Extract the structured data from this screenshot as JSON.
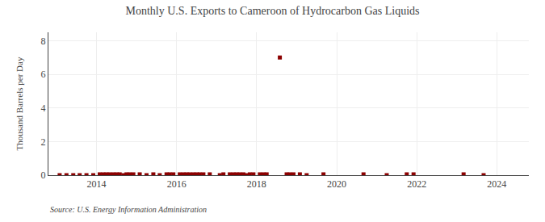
{
  "chart_data": {
    "type": "scatter",
    "title": "Monthly U.S. Exports to Cameroon of Hydrocarbon Gas Liquids",
    "y_label": "Thousand Barrels per Day",
    "annotations": [
      "Source: U.S. Energy Information Administration"
    ],
    "color": "#8b0000",
    "marker": "square",
    "grid": true,
    "xlim": [
      2012.8,
      2024.8
    ],
    "xticks": [
      2014,
      2016,
      2018,
      2020,
      2022,
      2024
    ],
    "ylim": [
      0,
      8.5
    ],
    "yticks": [
      0,
      2,
      4,
      6,
      8
    ],
    "x": [
      2013.08,
      2013.25,
      2013.42,
      2013.58,
      2013.75,
      2013.92,
      2014.08,
      2014.17,
      2014.25,
      2014.33,
      2014.42,
      2014.5,
      2014.58,
      2014.67,
      2014.75,
      2014.83,
      2014.92,
      2015.08,
      2015.25,
      2015.42,
      2015.58,
      2015.75,
      2015.83,
      2015.92,
      2016.08,
      2016.17,
      2016.25,
      2016.33,
      2016.42,
      2016.5,
      2016.58,
      2016.67,
      2016.83,
      2017.08,
      2017.17,
      2017.33,
      2017.42,
      2017.5,
      2017.58,
      2017.67,
      2017.75,
      2017.83,
      2017.92,
      2018.08,
      2018.17,
      2018.25,
      2018.58,
      2018.75,
      2018.83,
      2018.92,
      2019.08,
      2019.25,
      2019.67,
      2020.67,
      2021.25,
      2021.75,
      2021.92,
      2023.17,
      2023.67
    ],
    "values": [
      0.0,
      0.0,
      0.0,
      0.0,
      0.0,
      0.0,
      0.05,
      0.05,
      0.05,
      0.05,
      0.05,
      0.05,
      0.05,
      0.0,
      0.05,
      0.05,
      0.05,
      0.05,
      0.0,
      0.05,
      0.0,
      0.05,
      0.05,
      0.05,
      0.05,
      0.05,
      0.05,
      0.05,
      0.05,
      0.05,
      0.05,
      0.05,
      0.05,
      0.0,
      0.05,
      0.05,
      0.05,
      0.05,
      0.05,
      0.05,
      0.0,
      0.05,
      0.05,
      0.05,
      0.05,
      0.05,
      7.0,
      0.05,
      0.05,
      0.05,
      0.05,
      0.0,
      0.05,
      0.05,
      0.0,
      0.05,
      0.05,
      0.05,
      0.0
    ]
  }
}
